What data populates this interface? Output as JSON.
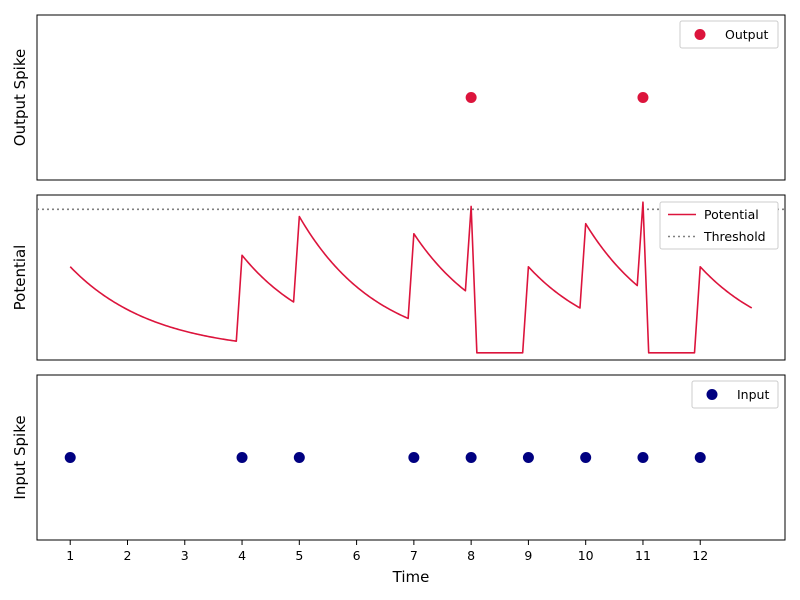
{
  "chart_data": {
    "type": "line",
    "xlabel": "Time",
    "x_ticks": [
      "1",
      "2",
      "3",
      "4",
      "5",
      "6",
      "7",
      "8",
      "9",
      "10",
      "11",
      "12"
    ],
    "xlim": [
      0.42,
      13.48
    ],
    "colors": {
      "output": "#dc143c",
      "potential": "#dc143c",
      "input": "#000080",
      "threshold": "#808080"
    },
    "panels": [
      {
        "id": "output",
        "type": "scatter",
        "ylabel": "Output Spike",
        "ylim": [
          0,
          2
        ],
        "legend": "top-right",
        "series": [
          {
            "name": "Output",
            "x": [
              8,
              11
            ],
            "y": [
              1,
              1
            ]
          }
        ]
      },
      {
        "id": "potential",
        "type": "line",
        "ylabel": "Potential",
        "ylim": [
          -0.05,
          1.1
        ],
        "legend": "top-right",
        "threshold": {
          "name": "Threshold",
          "value": 1.0
        },
        "series": [
          {
            "name": "Potential",
            "segments": [
              {
                "t0": 1.0,
                "t1": 3.9,
                "v0": 0.6,
                "tau": 1.45
              },
              {
                "t0": 4.0,
                "t1": 4.9,
                "v0": 0.68,
                "tau": 1.38
              },
              {
                "t0": 5.0,
                "t1": 6.9,
                "v0": 0.95,
                "tau": 1.38
              },
              {
                "t0": 7.0,
                "t1": 7.9,
                "v0": 0.83,
                "tau": 1.38
              },
              {
                "t0": 8.0,
                "t1": 8.0,
                "v0": 1.02,
                "tau": 1.38
              },
              {
                "t0": 9.0,
                "t1": 9.9,
                "v0": 0.6,
                "tau": 1.38
              },
              {
                "t0": 10.0,
                "t1": 10.9,
                "v0": 0.9,
                "tau": 1.38
              },
              {
                "t0": 11.0,
                "t1": 11.0,
                "v0": 1.05,
                "tau": 1.38
              },
              {
                "t0": 12.0,
                "t1": 12.9,
                "v0": 0.6,
                "tau": 1.38
              }
            ],
            "resets": [
              {
                "t_from": 8.1,
                "t_to": 8.9,
                "v": 0.0
              },
              {
                "t_from": 11.1,
                "t_to": 11.9,
                "v": 0.0
              }
            ]
          }
        ]
      },
      {
        "id": "input",
        "type": "scatter",
        "ylabel": "Input Spike",
        "ylim": [
          0,
          2
        ],
        "legend": "top-right",
        "series": [
          {
            "name": "Input",
            "x": [
              1,
              4,
              5,
              7,
              8,
              9,
              10,
              11,
              12
            ],
            "y": [
              1,
              1,
              1,
              1,
              1,
              1,
              1,
              1,
              1
            ]
          }
        ]
      }
    ]
  }
}
